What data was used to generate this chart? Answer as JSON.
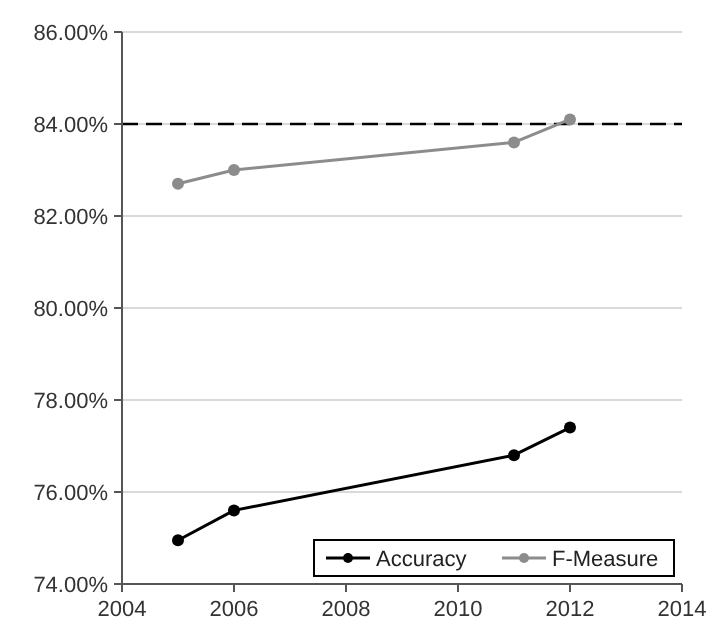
{
  "chart_data": {
    "type": "line",
    "x": [
      2005,
      2006,
      2011,
      2012
    ],
    "series": [
      {
        "name": "Accuracy",
        "color": "#000000",
        "values": [
          74.95,
          75.6,
          76.8,
          77.4
        ]
      },
      {
        "name": "F-Measure",
        "color": "#8c8c8c",
        "values": [
          82.7,
          83.0,
          83.6,
          84.1
        ]
      }
    ],
    "xlim": [
      2004,
      2014
    ],
    "xticks": [
      2004,
      2006,
      2008,
      2010,
      2012,
      2014
    ],
    "ylim": [
      74,
      86
    ],
    "yticks": [
      {
        "value": 74,
        "label": "74.00%"
      },
      {
        "value": 76,
        "label": "76.00%"
      },
      {
        "value": 78,
        "label": "78.00%"
      },
      {
        "value": 80,
        "label": "80.00%"
      },
      {
        "value": 82,
        "label": "82.00%"
      },
      {
        "value": 84,
        "label": "84.00%"
      },
      {
        "value": 86,
        "label": "86.00%"
      }
    ],
    "grid": "y",
    "legend": "bottom right",
    "marker": "circle",
    "line_style": "solid",
    "ref_lines": [
      {
        "axis": "y",
        "value": 84,
        "color": "#000000",
        "line_style": "dashed"
      }
    ]
  }
}
